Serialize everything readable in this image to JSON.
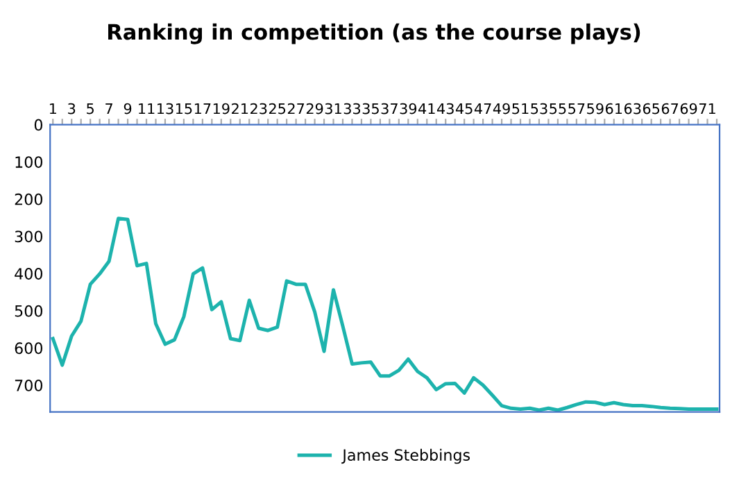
{
  "chart_data": {
    "type": "line",
    "title": "Ranking in competition (as the course plays)",
    "categories": [
      "1",
      null,
      "3",
      null,
      "5",
      null,
      "7",
      null,
      "9",
      null,
      "11",
      null,
      "13",
      null,
      "15",
      null,
      "17",
      null,
      "19",
      null,
      "21",
      null,
      "23",
      null,
      "25",
      null,
      "27",
      null,
      "29",
      null,
      "31",
      null,
      "33",
      null,
      "35",
      null,
      "37",
      null,
      "39",
      null,
      "41",
      null,
      "43",
      null,
      "45",
      null,
      "47",
      null,
      "49",
      null,
      "51",
      null,
      "53",
      null,
      "55",
      null,
      "57",
      null,
      "59",
      null,
      "61",
      null,
      "63",
      null,
      "65",
      null,
      "67",
      null,
      "69",
      null,
      "71",
      null
    ],
    "series": [
      {
        "name": "James Stebbings",
        "color": "#1db3ad",
        "values": [
          575,
          646,
          568,
          528,
          429,
          401,
          367,
          252,
          255,
          379,
          373,
          535,
          590,
          578,
          516,
          401,
          385,
          497,
          476,
          575,
          580,
          472,
          547,
          553,
          544,
          420,
          429,
          429,
          503,
          609,
          444,
          541,
          643,
          640,
          638,
          675,
          675,
          660,
          630,
          663,
          680,
          712,
          696,
          695,
          721,
          680,
          700,
          727,
          755,
          762,
          764,
          762,
          767,
          762,
          767,
          760,
          752,
          745,
          746,
          752,
          747,
          752,
          755,
          755,
          757,
          760,
          762,
          763,
          764,
          764,
          764,
          764
        ]
      }
    ],
    "ylim": [
      772,
      0
    ],
    "yticks": [
      0,
      100,
      200,
      300,
      400,
      500,
      600,
      700
    ],
    "grid": false,
    "legend": "bottom",
    "marker": "none",
    "line_style": "solid"
  }
}
